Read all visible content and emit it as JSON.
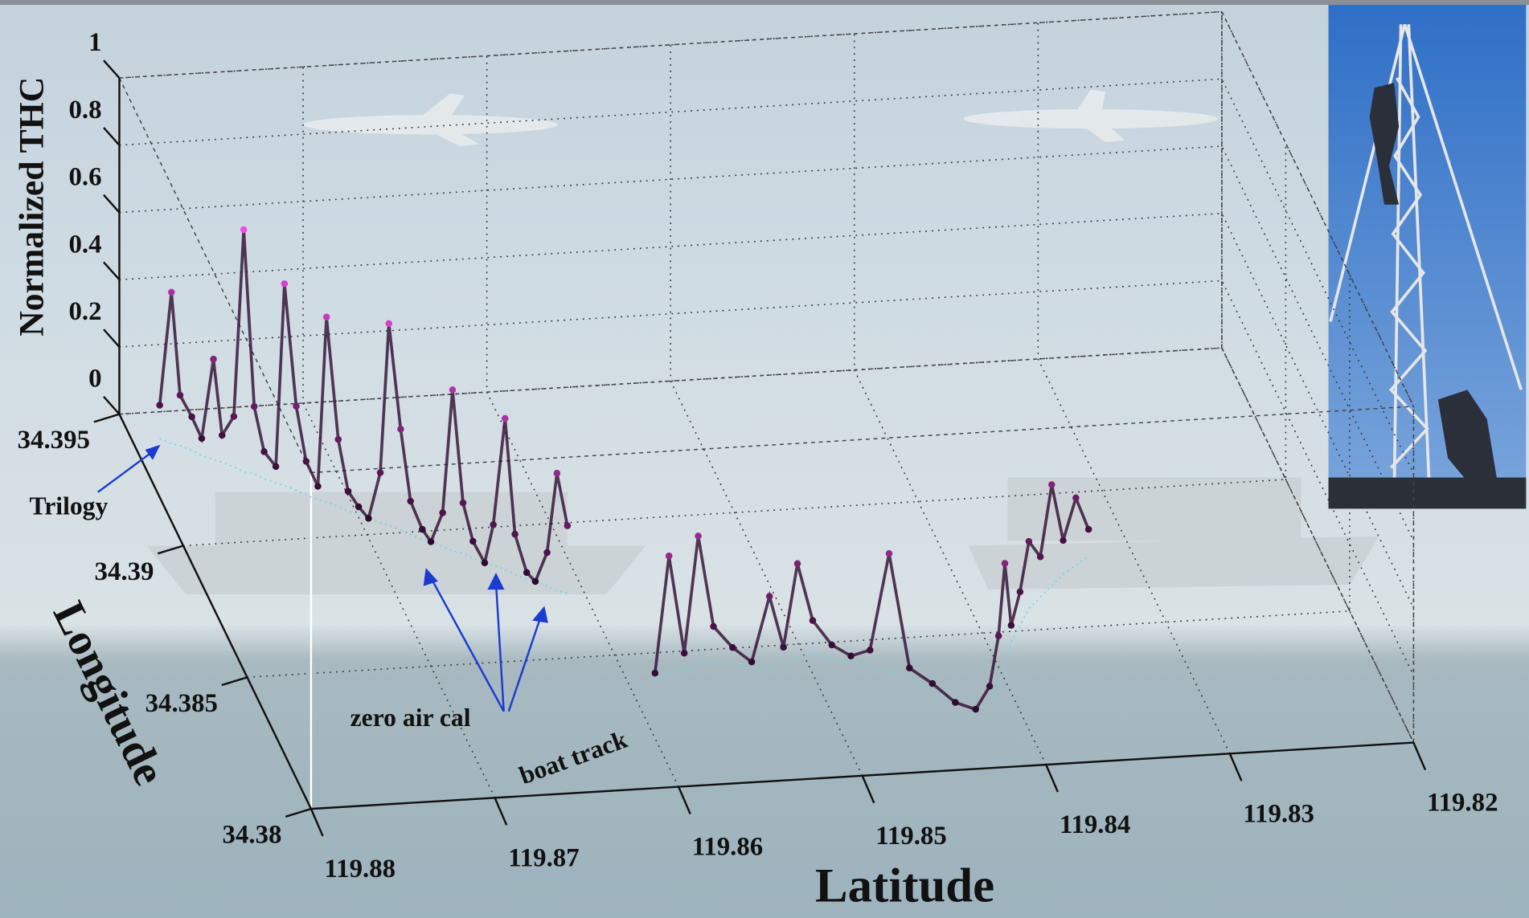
{
  "chart_data": {
    "type": "scatter3d",
    "zlabel": "Normalized THC",
    "ylabel": "Longitude",
    "xlabel": "Latitude",
    "xlim": [
      119.88,
      119.82
    ],
    "xticks": [
      119.88,
      119.87,
      119.86,
      119.85,
      119.84,
      119.83,
      119.82
    ],
    "ylim": [
      34.38,
      34.395
    ],
    "yticks": [
      34.38,
      34.385,
      34.39,
      34.395
    ],
    "zlim": [
      0,
      1
    ],
    "zticks": [
      0,
      0.2,
      0.4,
      0.6,
      0.8,
      1
    ],
    "grid": true,
    "colormap": [
      "#2e0a2e",
      "#ff4cf2"
    ],
    "track_color": "#6fd6e6",
    "annotations": [
      "Trilogy",
      "zero air cal",
      "boat track"
    ],
    "series": [
      {
        "x": [
          119.8785,
          119.878,
          119.8776,
          119.8771,
          119.8767,
          119.8762,
          119.8758,
          119.8753,
          119.8749,
          119.8744,
          119.874,
          119.8735,
          119.8731,
          119.8726,
          119.8722,
          119.8717,
          119.8713,
          119.8708,
          119.8704,
          119.8699,
          119.8695,
          119.869,
          119.8686,
          119.8681,
          119.8677,
          119.8672,
          119.8668,
          119.8663,
          119.8659,
          119.8654,
          119.865,
          119.8645,
          119.8641,
          119.8636,
          119.8632,
          119.8627,
          119.8623,
          119.8618,
          119.8614,
          119.8609
        ],
        "y": [
          34.394,
          34.3938,
          34.3937,
          34.3935,
          34.3933,
          34.3931,
          34.393,
          34.3928,
          34.3926,
          34.3925,
          34.3923,
          34.3921,
          34.392,
          34.3918,
          34.3916,
          34.3914,
          34.3913,
          34.3911,
          34.3909,
          34.3908,
          34.3906,
          34.3904,
          34.3903,
          34.3901,
          34.3899,
          34.3897,
          34.3896,
          34.3894,
          34.3892,
          34.3891,
          34.3889,
          34.3887,
          34.3886,
          34.3884,
          34.3882,
          34.388,
          34.3879,
          34.3877,
          34.3875,
          34.3874
        ],
        "z": [
          0.1,
          0.45,
          0.15,
          0.1,
          0.05,
          0.3,
          0.08,
          0.15,
          0.72,
          0.2,
          0.08,
          0.05,
          0.6,
          0.25,
          0.1,
          0.04,
          0.55,
          0.2,
          0.06,
          0.02,
          0.0,
          0.15,
          0.6,
          0.3,
          0.1,
          0.03,
          0.0,
          0.1,
          0.48,
          0.15,
          0.05,
          0.0,
          0.12,
          0.45,
          0.12,
          0.02,
          0.0,
          0.1,
          0.35,
          0.2
        ]
      },
      {
        "x": [
          119.8585,
          119.8576,
          119.8567,
          119.8558,
          119.8549,
          119.854,
          119.8531,
          119.8522,
          119.8513,
          119.8504,
          119.8495,
          119.8486,
          119.8477,
          119.8468,
          119.8459,
          119.845,
          119.8441,
          119.8432,
          119.8423,
          119.8414,
          119.8405,
          119.8396,
          119.8387,
          119.8378,
          119.8369,
          119.836,
          119.8351,
          119.8342,
          119.8333,
          119.8324
        ],
        "y": [
          34.384,
          34.3842,
          34.3843,
          34.3845,
          34.3846,
          34.3844,
          34.3842,
          34.3841,
          34.3843,
          34.3845,
          34.3846,
          34.3844,
          34.3842,
          34.384,
          34.3838,
          34.3835,
          34.383,
          34.3825,
          34.3822,
          34.3824,
          34.383,
          34.3838,
          34.3846,
          34.3852,
          34.3858,
          34.3862,
          34.3866,
          34.387,
          34.3873,
          34.3876
        ],
        "z": [
          0.02,
          0.35,
          0.05,
          0.38,
          0.1,
          0.05,
          0.02,
          0.22,
          0.05,
          0.28,
          0.1,
          0.04,
          0.02,
          0.05,
          0.35,
          0.03,
          0.02,
          0.0,
          0.0,
          0.05,
          0.15,
          0.3,
          0.05,
          0.1,
          0.2,
          0.12,
          0.3,
          0.1,
          0.2,
          0.08
        ]
      }
    ]
  }
}
